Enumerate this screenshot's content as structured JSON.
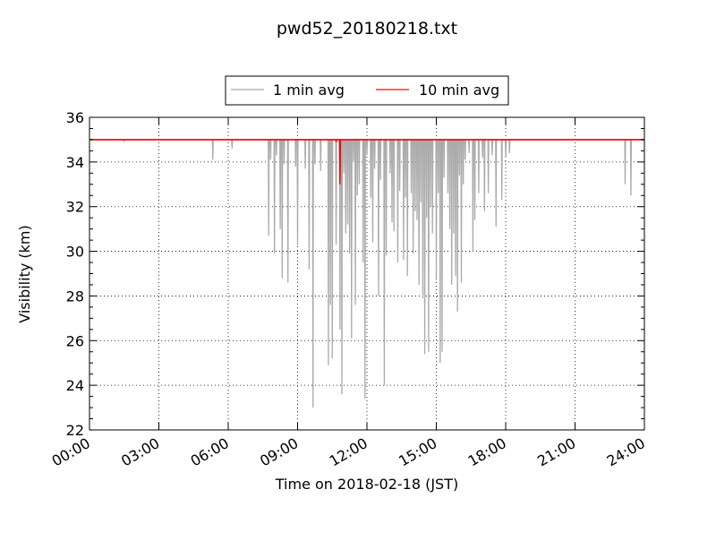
{
  "chart_data": {
    "type": "line",
    "title": "pwd52_20180218.txt",
    "xlabel": "Time on 2018-02-18 (JST)",
    "ylabel": "Visibility (km)",
    "xlim": [
      "00:00",
      "24:00"
    ],
    "ylim": [
      22,
      36
    ],
    "x_ticks": [
      "00:00",
      "03:00",
      "06:00",
      "09:00",
      "12:00",
      "15:00",
      "18:00",
      "21:00",
      "24:00"
    ],
    "y_ticks": [
      "22",
      "24",
      "26",
      "28",
      "30",
      "32",
      "34",
      "36"
    ],
    "grid": true,
    "legend_position": "top-center",
    "baseline": 35,
    "series": [
      {
        "name": "1 min avg",
        "color": "#aaaaaa",
        "dips": [
          [
            "01:30",
            34.9
          ],
          [
            "05:20",
            34.1
          ],
          [
            "06:10",
            34.6
          ],
          [
            "07:45",
            30.7
          ],
          [
            "07:50",
            34.1
          ],
          [
            "08:00",
            29.9
          ],
          [
            "08:05",
            34.3
          ],
          [
            "08:15",
            31.0
          ],
          [
            "08:20",
            28.8
          ],
          [
            "08:25",
            33.9
          ],
          [
            "08:35",
            28.6
          ],
          [
            "08:55",
            33.8
          ],
          [
            "09:00",
            30.3
          ],
          [
            "09:20",
            33.7
          ],
          [
            "09:30",
            29.2
          ],
          [
            "09:40",
            23.0
          ],
          [
            "09:45",
            33.9
          ],
          [
            "10:00",
            33.6
          ],
          [
            "10:20",
            24.9
          ],
          [
            "10:25",
            27.6
          ],
          [
            "10:30",
            25.2
          ],
          [
            "10:40",
            30.3
          ],
          [
            "10:50",
            26.5
          ],
          [
            "10:55",
            23.6
          ],
          [
            "11:00",
            33.5
          ],
          [
            "11:05",
            30.8
          ],
          [
            "11:10",
            31.2
          ],
          [
            "11:15",
            29.9
          ],
          [
            "11:20",
            26.1
          ],
          [
            "11:25",
            34.0
          ],
          [
            "11:30",
            27.6
          ],
          [
            "11:35",
            32.5
          ],
          [
            "11:40",
            33.0
          ],
          [
            "11:50",
            29.5
          ],
          [
            "11:55",
            23.4
          ],
          [
            "12:00",
            34.3
          ],
          [
            "12:10",
            32.4
          ],
          [
            "12:15",
            30.4
          ],
          [
            "12:20",
            33.7
          ],
          [
            "12:30",
            28.0
          ],
          [
            "12:35",
            33.2
          ],
          [
            "12:45",
            24.0
          ],
          [
            "12:50",
            29.8
          ],
          [
            "13:00",
            33.5
          ],
          [
            "13:05",
            31.3
          ],
          [
            "13:10",
            30.9
          ],
          [
            "13:20",
            29.5
          ],
          [
            "13:25",
            32.7
          ],
          [
            "13:35",
            29.6
          ],
          [
            "13:40",
            32.4
          ],
          [
            "13:45",
            28.9
          ],
          [
            "13:55",
            32.6
          ],
          [
            "14:00",
            29.9
          ],
          [
            "14:05",
            31.8
          ],
          [
            "14:10",
            31.4
          ],
          [
            "14:15",
            28.5
          ],
          [
            "14:20",
            32.2
          ],
          [
            "14:25",
            27.9
          ],
          [
            "14:30",
            25.4
          ],
          [
            "14:35",
            31.5
          ],
          [
            "14:40",
            25.5
          ],
          [
            "14:45",
            32.0
          ],
          [
            "14:50",
            30.8
          ],
          [
            "15:00",
            28.8
          ],
          [
            "15:05",
            32.6
          ],
          [
            "15:10",
            25.0
          ],
          [
            "15:15",
            25.5
          ],
          [
            "15:20",
            33.3
          ],
          [
            "15:30",
            32.6
          ],
          [
            "15:35",
            31.0
          ],
          [
            "15:40",
            28.5
          ],
          [
            "15:45",
            30.8
          ],
          [
            "15:50",
            28.9
          ],
          [
            "15:55",
            27.3
          ],
          [
            "16:00",
            33.4
          ],
          [
            "16:05",
            28.6
          ],
          [
            "16:10",
            33.0
          ],
          [
            "16:15",
            34.1
          ],
          [
            "16:25",
            34.4
          ],
          [
            "16:35",
            30.0
          ],
          [
            "16:40",
            31.4
          ],
          [
            "16:50",
            32.6
          ],
          [
            "17:00",
            34.2
          ],
          [
            "17:05",
            31.8
          ],
          [
            "17:15",
            32.6
          ],
          [
            "17:25",
            34.3
          ],
          [
            "17:35",
            31.1
          ],
          [
            "17:50",
            32.3
          ],
          [
            "18:00",
            34.2
          ],
          [
            "18:10",
            34.4
          ],
          [
            "23:10",
            33.0
          ],
          [
            "23:25",
            32.5
          ]
        ]
      },
      {
        "name": "10 min avg",
        "color": "#ff0000",
        "dips": [
          [
            "10:40",
            34.9
          ],
          [
            "10:50",
            33.0
          ]
        ]
      }
    ]
  }
}
